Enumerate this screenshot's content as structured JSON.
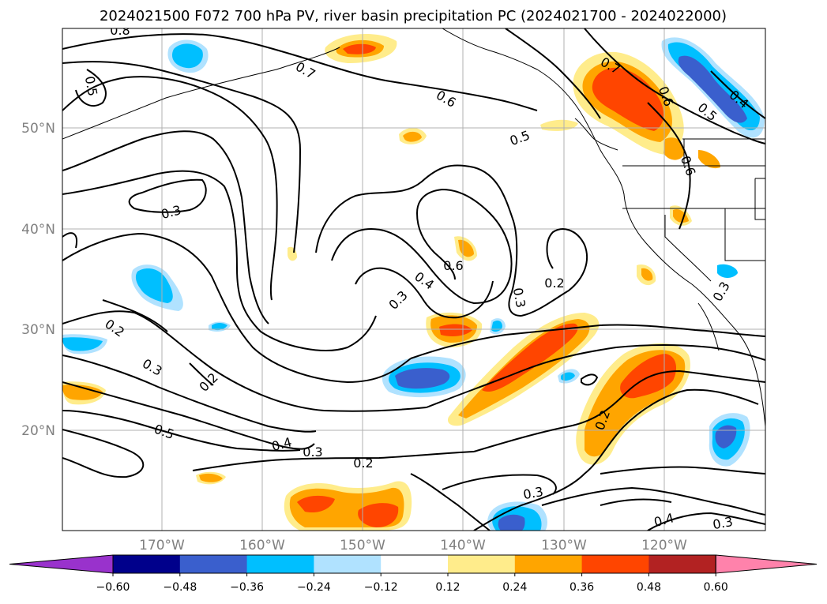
{
  "title": "2024021500 F072 700 hPa PV, river basin precipitation PC (2024021700 - 2024022000)",
  "lat_labels": [
    "50°N",
    "40°N",
    "30°N",
    "20°N"
  ],
  "lon_labels": [
    "170°W",
    "160°W",
    "150°W",
    "140°W",
    "130°W",
    "120°W"
  ],
  "colorbar": {
    "colors": [
      "#9932CC",
      "#00008B",
      "#3A5FCD",
      "#00BFFF",
      "#B0E2FF",
      "#FFFFFF",
      "#FFEC8B",
      "#FFA500",
      "#FF4500",
      "#B22222",
      "#FF82AB"
    ],
    "ticks": [
      "−0.60",
      "−0.48",
      "−0.36",
      "−0.24",
      "−0.12",
      "0.12",
      "0.24",
      "0.36",
      "0.48",
      "0.60"
    ]
  },
  "contour_labels": [
    "0.8",
    "0.5",
    "0.7",
    "0.6",
    "0.5",
    "0.7",
    "0.3",
    "0.6",
    "0.4",
    "0.3",
    "0.2",
    "0.3",
    "0.2",
    "0.3",
    "0.2",
    "0.5",
    "0.4",
    "0.3",
    "0.2",
    "0.3",
    "0.2",
    "0.4",
    "0.3",
    "0.5",
    "0.4",
    "0.6",
    "0.6",
    "0.3"
  ]
}
